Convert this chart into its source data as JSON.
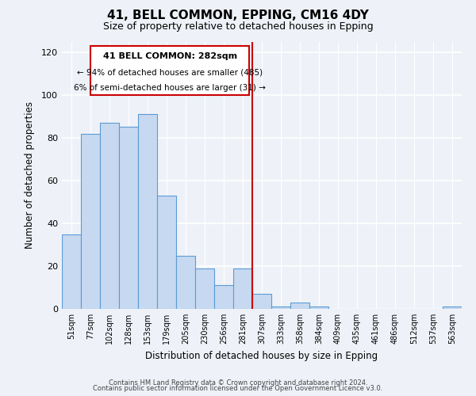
{
  "title": "41, BELL COMMON, EPPING, CM16 4DY",
  "subtitle": "Size of property relative to detached houses in Epping",
  "xlabel": "Distribution of detached houses by size in Epping",
  "ylabel": "Number of detached properties",
  "categories": [
    "51sqm",
    "77sqm",
    "102sqm",
    "128sqm",
    "153sqm",
    "179sqm",
    "205sqm",
    "230sqm",
    "256sqm",
    "281sqm",
    "307sqm",
    "333sqm",
    "358sqm",
    "384sqm",
    "409sqm",
    "435sqm",
    "461sqm",
    "486sqm",
    "512sqm",
    "537sqm",
    "563sqm"
  ],
  "bar_heights": [
    35,
    82,
    87,
    85,
    91,
    53,
    25,
    19,
    11,
    19,
    7,
    1,
    3,
    1,
    0,
    0,
    0,
    0,
    0,
    0,
    1
  ],
  "bar_color": "#c6d9f0",
  "bar_edge_color": "#5b9bd5",
  "vline_color": "#cc0000",
  "annotation_title": "41 BELL COMMON: 282sqm",
  "annotation_line1": "← 94% of detached houses are smaller (485)",
  "annotation_line2": "6% of semi-detached houses are larger (31) →",
  "annotation_box_color": "#cc0000",
  "ylim": [
    0,
    125
  ],
  "yticks": [
    0,
    20,
    40,
    60,
    80,
    100,
    120
  ],
  "footer1": "Contains HM Land Registry data © Crown copyright and database right 2024.",
  "footer2": "Contains public sector information licensed under the Open Government Licence v3.0.",
  "background_color": "#eef2f8"
}
